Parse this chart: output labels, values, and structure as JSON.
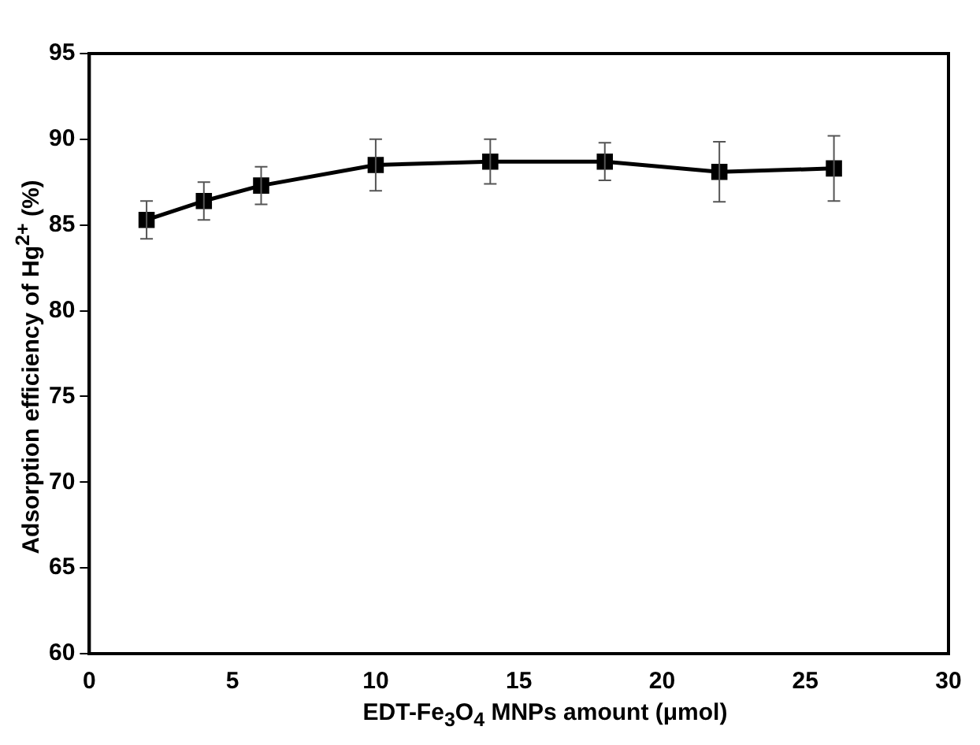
{
  "chart_data": {
    "type": "line",
    "xlabel": "EDT-Fe$_{3}$O$_{4}$ MNPs amount (μmol)",
    "ylabel": "Adsorption efficiency of Hg$^{2+}$ (%)",
    "x": [
      2,
      4,
      6,
      10,
      14,
      18,
      22,
      26
    ],
    "series": [
      {
        "color": "#000000",
        "values": [
          85.3,
          86.4,
          87.3,
          88.5,
          88.7,
          88.7,
          88.1,
          88.3
        ],
        "errors": [
          1.1,
          1.1,
          1.1,
          1.5,
          1.3,
          1.1,
          1.75,
          1.9
        ]
      }
    ],
    "xlim": [
      0,
      30
    ],
    "xticks": [
      0,
      5,
      10,
      15,
      20,
      25,
      30
    ],
    "ylim": [
      60,
      95
    ],
    "yticks": [
      60,
      65,
      70,
      75,
      80,
      85,
      90,
      95
    ],
    "marker": "square",
    "line_style": "solid",
    "grid": false,
    "legend": false
  }
}
